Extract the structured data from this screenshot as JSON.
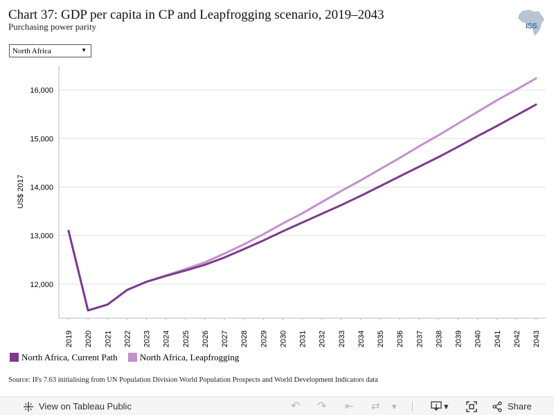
{
  "header": {
    "title": "Chart 37: GDP per capita in CP and Leapfrogging scenario, 2019–2043",
    "subtitle": "Purchasing power parity",
    "logo_text": "ISS"
  },
  "filter": {
    "selected": "North Africa"
  },
  "colors": {
    "current_path": "#7b3a8c",
    "leapfrogging": "#c28fcf",
    "grid": "#dddddd"
  },
  "chart_data": {
    "type": "line",
    "title": "Chart 37: GDP per capita in CP and Leapfrogging scenario, 2019–2043",
    "subtitle": "Purchasing power parity",
    "xlabel": "",
    "ylabel": "US$ 2017",
    "x": [
      2019,
      2020,
      2021,
      2022,
      2023,
      2024,
      2025,
      2026,
      2027,
      2028,
      2029,
      2030,
      2031,
      2032,
      2033,
      2034,
      2035,
      2036,
      2037,
      2038,
      2039,
      2040,
      2041,
      2042,
      2043
    ],
    "x_tick_labels": [
      "2019",
      "2020",
      "2021",
      "2022",
      "2023",
      "2024",
      "2025",
      "2026",
      "2027",
      "2028",
      "2029",
      "2030",
      "2031",
      "2032",
      "2033",
      "2034",
      "2035",
      "2036",
      "2037",
      "2038",
      "2039",
      "2040",
      "2041",
      "2042",
      "2043"
    ],
    "ylim": [
      11300,
      16500
    ],
    "y_ticks": [
      12000,
      13000,
      14000,
      15000,
      16000
    ],
    "y_tick_labels": [
      "12,000",
      "13,000",
      "14,000",
      "15,000",
      "16,000"
    ],
    "grid": true,
    "legend_position": "bottom-left",
    "series": [
      {
        "name": "North Africa, Current Path",
        "color": "#7b3a8c",
        "values": [
          13100,
          11460,
          11580,
          11880,
          12050,
          12170,
          12280,
          12400,
          12550,
          12720,
          12900,
          13090,
          13270,
          13450,
          13630,
          13820,
          14020,
          14220,
          14420,
          14620,
          14830,
          15050,
          15260,
          15480,
          15700
        ]
      },
      {
        "name": "North Africa, Leapfrogging",
        "color": "#c28fcf",
        "values": [
          13100,
          11460,
          11580,
          11880,
          12050,
          12180,
          12310,
          12450,
          12630,
          12820,
          13030,
          13250,
          13460,
          13690,
          13920,
          14140,
          14370,
          14600,
          14840,
          15070,
          15310,
          15550,
          15790,
          16010,
          16240
        ]
      }
    ]
  },
  "source": "Source: IFs 7.63 initialising from UN Population Division World Population Prospects and World Development Indicators data",
  "toolbar": {
    "view_label": "View on Tableau Public",
    "share_label": "Share",
    "dropdown_caret": "▾"
  }
}
